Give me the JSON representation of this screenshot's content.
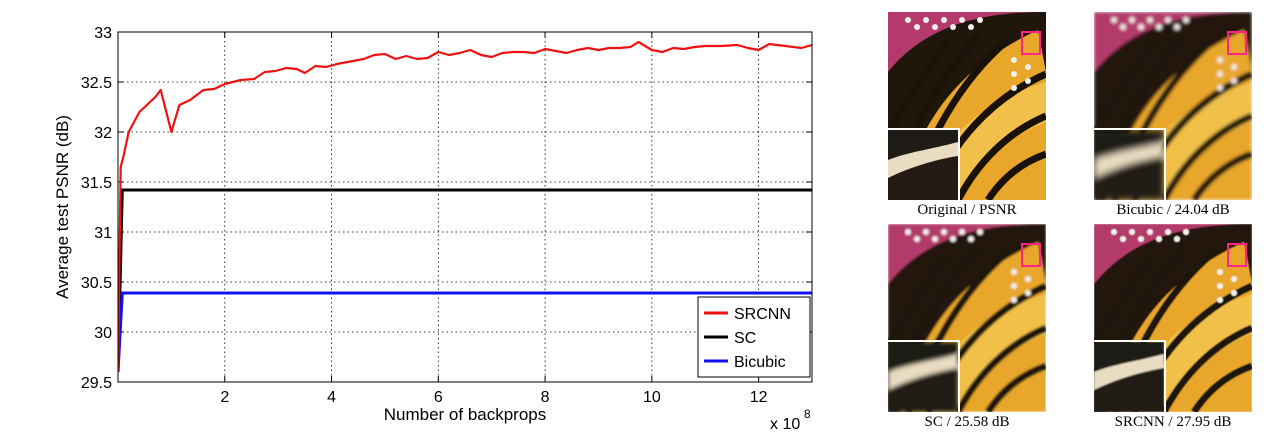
{
  "chart_data": {
    "type": "line",
    "xlabel": "Number of backprops",
    "ylabel": "Average test PSNR (dB)",
    "x_multiplier_label": "x 10",
    "x_multiplier_exponent": "8",
    "xlim": [
      0,
      13
    ],
    "ylim": [
      29.5,
      33
    ],
    "xticks": [
      "2",
      "4",
      "6",
      "8",
      "10",
      "12"
    ],
    "yticks": [
      "29.5",
      "30",
      "30.5",
      "31",
      "31.5",
      "32",
      "32.5",
      "33"
    ],
    "grid": true,
    "legend_position": "bottom-right",
    "series": [
      {
        "name": "SRCNN",
        "color": "#ee1111",
        "points": [
          [
            0.0,
            29.6
          ],
          [
            0.05,
            31.65
          ],
          [
            0.1,
            31.75
          ],
          [
            0.2,
            32.0
          ],
          [
            0.4,
            32.2
          ],
          [
            0.7,
            32.35
          ],
          [
            0.8,
            32.42
          ],
          [
            1.0,
            32.0
          ],
          [
            1.15,
            32.27
          ],
          [
            1.35,
            32.32
          ],
          [
            1.6,
            32.42
          ],
          [
            1.8,
            32.43
          ],
          [
            2.0,
            32.48
          ],
          [
            2.3,
            32.52
          ],
          [
            2.55,
            32.53
          ],
          [
            2.75,
            32.6
          ],
          [
            2.95,
            32.61
          ],
          [
            3.15,
            32.64
          ],
          [
            3.35,
            32.63
          ],
          [
            3.5,
            32.59
          ],
          [
            3.7,
            32.66
          ],
          [
            3.9,
            32.65
          ],
          [
            4.1,
            32.68
          ],
          [
            4.3,
            32.7
          ],
          [
            4.6,
            32.73
          ],
          [
            4.8,
            32.77
          ],
          [
            5.0,
            32.78
          ],
          [
            5.2,
            32.73
          ],
          [
            5.4,
            32.76
          ],
          [
            5.6,
            32.73
          ],
          [
            5.8,
            32.74
          ],
          [
            6.0,
            32.8
          ],
          [
            6.2,
            32.77
          ],
          [
            6.4,
            32.79
          ],
          [
            6.6,
            32.82
          ],
          [
            6.8,
            32.77
          ],
          [
            7.0,
            32.75
          ],
          [
            7.2,
            32.79
          ],
          [
            7.4,
            32.8
          ],
          [
            7.6,
            32.8
          ],
          [
            7.8,
            32.79
          ],
          [
            8.0,
            32.83
          ],
          [
            8.2,
            32.81
          ],
          [
            8.4,
            32.79
          ],
          [
            8.6,
            32.82
          ],
          [
            8.8,
            32.84
          ],
          [
            9.0,
            32.82
          ],
          [
            9.2,
            32.84
          ],
          [
            9.4,
            32.84
          ],
          [
            9.6,
            32.85
          ],
          [
            9.75,
            32.9
          ],
          [
            10.0,
            32.82
          ],
          [
            10.2,
            32.8
          ],
          [
            10.4,
            32.84
          ],
          [
            10.6,
            32.83
          ],
          [
            10.8,
            32.85
          ],
          [
            11.0,
            32.86
          ],
          [
            11.3,
            32.86
          ],
          [
            11.6,
            32.87
          ],
          [
            11.8,
            32.84
          ],
          [
            12.0,
            32.82
          ],
          [
            12.2,
            32.88
          ],
          [
            12.5,
            32.86
          ],
          [
            12.8,
            32.84
          ],
          [
            13.0,
            32.87
          ]
        ]
      },
      {
        "name": "SC",
        "color": "#000000",
        "constant": 31.42,
        "start": [
          0.0,
          29.6
        ]
      },
      {
        "name": "Bicubic",
        "color": "#1111ee",
        "constant": 30.39,
        "start": [
          0.0,
          29.6
        ]
      }
    ]
  },
  "figure_panels": [
    {
      "caption": "Original / PSNR"
    },
    {
      "caption": "Bicubic / 24.04 dB"
    },
    {
      "caption": "SC / 25.58 dB"
    },
    {
      "caption": "SRCNN / 27.95 dB"
    }
  ]
}
